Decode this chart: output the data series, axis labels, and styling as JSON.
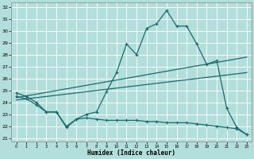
{
  "xlabel": "Humidex (Indice chaleur)",
  "bg_color": "#b2dfdb",
  "grid_color": "#ffffff",
  "line_color": "#1a6b6b",
  "xlim": [
    -0.5,
    23.5
  ],
  "ylim": [
    20.7,
    32.4
  ],
  "yticks": [
    21,
    22,
    23,
    24,
    25,
    26,
    27,
    28,
    29,
    30,
    31,
    32
  ],
  "xticks": [
    0,
    1,
    2,
    3,
    4,
    5,
    6,
    7,
    8,
    9,
    10,
    11,
    12,
    13,
    14,
    15,
    16,
    17,
    18,
    19,
    20,
    21,
    22,
    23
  ],
  "curve1_x": [
    0,
    1,
    2,
    3,
    4,
    5,
    6,
    7,
    8,
    9,
    10,
    11,
    12,
    13,
    14,
    15,
    16,
    17,
    18,
    19,
    20,
    21,
    22,
    23
  ],
  "curve1_y": [
    24.8,
    24.5,
    24.0,
    23.2,
    23.2,
    21.9,
    22.6,
    23.0,
    23.2,
    24.9,
    26.5,
    28.9,
    28.0,
    30.2,
    30.6,
    31.7,
    30.4,
    30.4,
    28.9,
    27.2,
    27.5,
    23.5,
    21.9,
    21.3
  ],
  "curve2_x": [
    0,
    1,
    2,
    3,
    4,
    5,
    6,
    7,
    8,
    9,
    10,
    11,
    12,
    13,
    14,
    15,
    16,
    17,
    18,
    19,
    20,
    21,
    22,
    23
  ],
  "curve2_y": [
    24.5,
    24.3,
    23.8,
    23.2,
    23.2,
    22.0,
    22.6,
    22.7,
    22.6,
    22.5,
    22.5,
    22.5,
    22.5,
    22.4,
    22.4,
    22.3,
    22.3,
    22.3,
    22.2,
    22.1,
    22.0,
    21.9,
    21.8,
    21.3
  ],
  "line1_x": [
    0,
    23
  ],
  "line1_y": [
    24.4,
    27.8
  ],
  "line2_x": [
    0,
    23
  ],
  "line2_y": [
    24.2,
    26.5
  ]
}
